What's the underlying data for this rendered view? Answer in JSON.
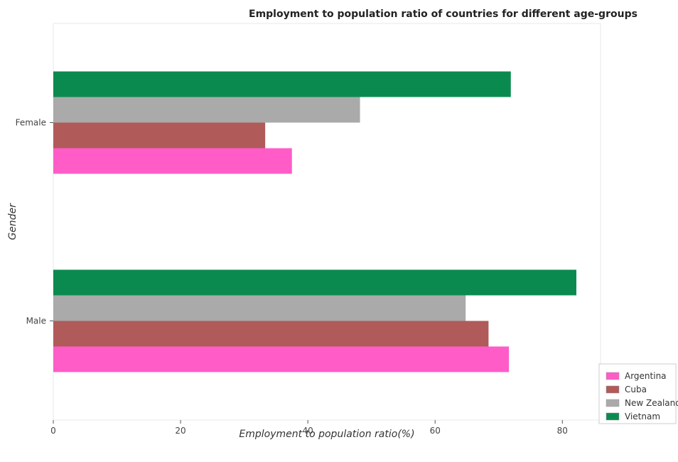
{
  "chart_data": {
    "type": "bar",
    "orientation": "horizontal",
    "title": "Employment to population ratio of countries for different age-groups",
    "xlabel": "Employment to population ratio(%)",
    "ylabel": "Gender",
    "categories": [
      "Female",
      "Male"
    ],
    "xlim": [
      0,
      86
    ],
    "xticks": [
      0,
      20,
      40,
      60,
      80
    ],
    "grid": false,
    "legend_position": "bottom-right",
    "series": [
      {
        "name": "Argentina",
        "color": "#ff5cc8",
        "values": [
          37.5,
          71.6
        ]
      },
      {
        "name": "Cuba",
        "color": "#b05a5a",
        "values": [
          33.3,
          68.4
        ]
      },
      {
        "name": "New Zealand",
        "color": "#aaaaaa",
        "values": [
          48.2,
          64.8
        ]
      },
      {
        "name": "Vietnam",
        "color": "#0b8a50",
        "values": [
          71.9,
          82.2
        ]
      }
    ]
  }
}
